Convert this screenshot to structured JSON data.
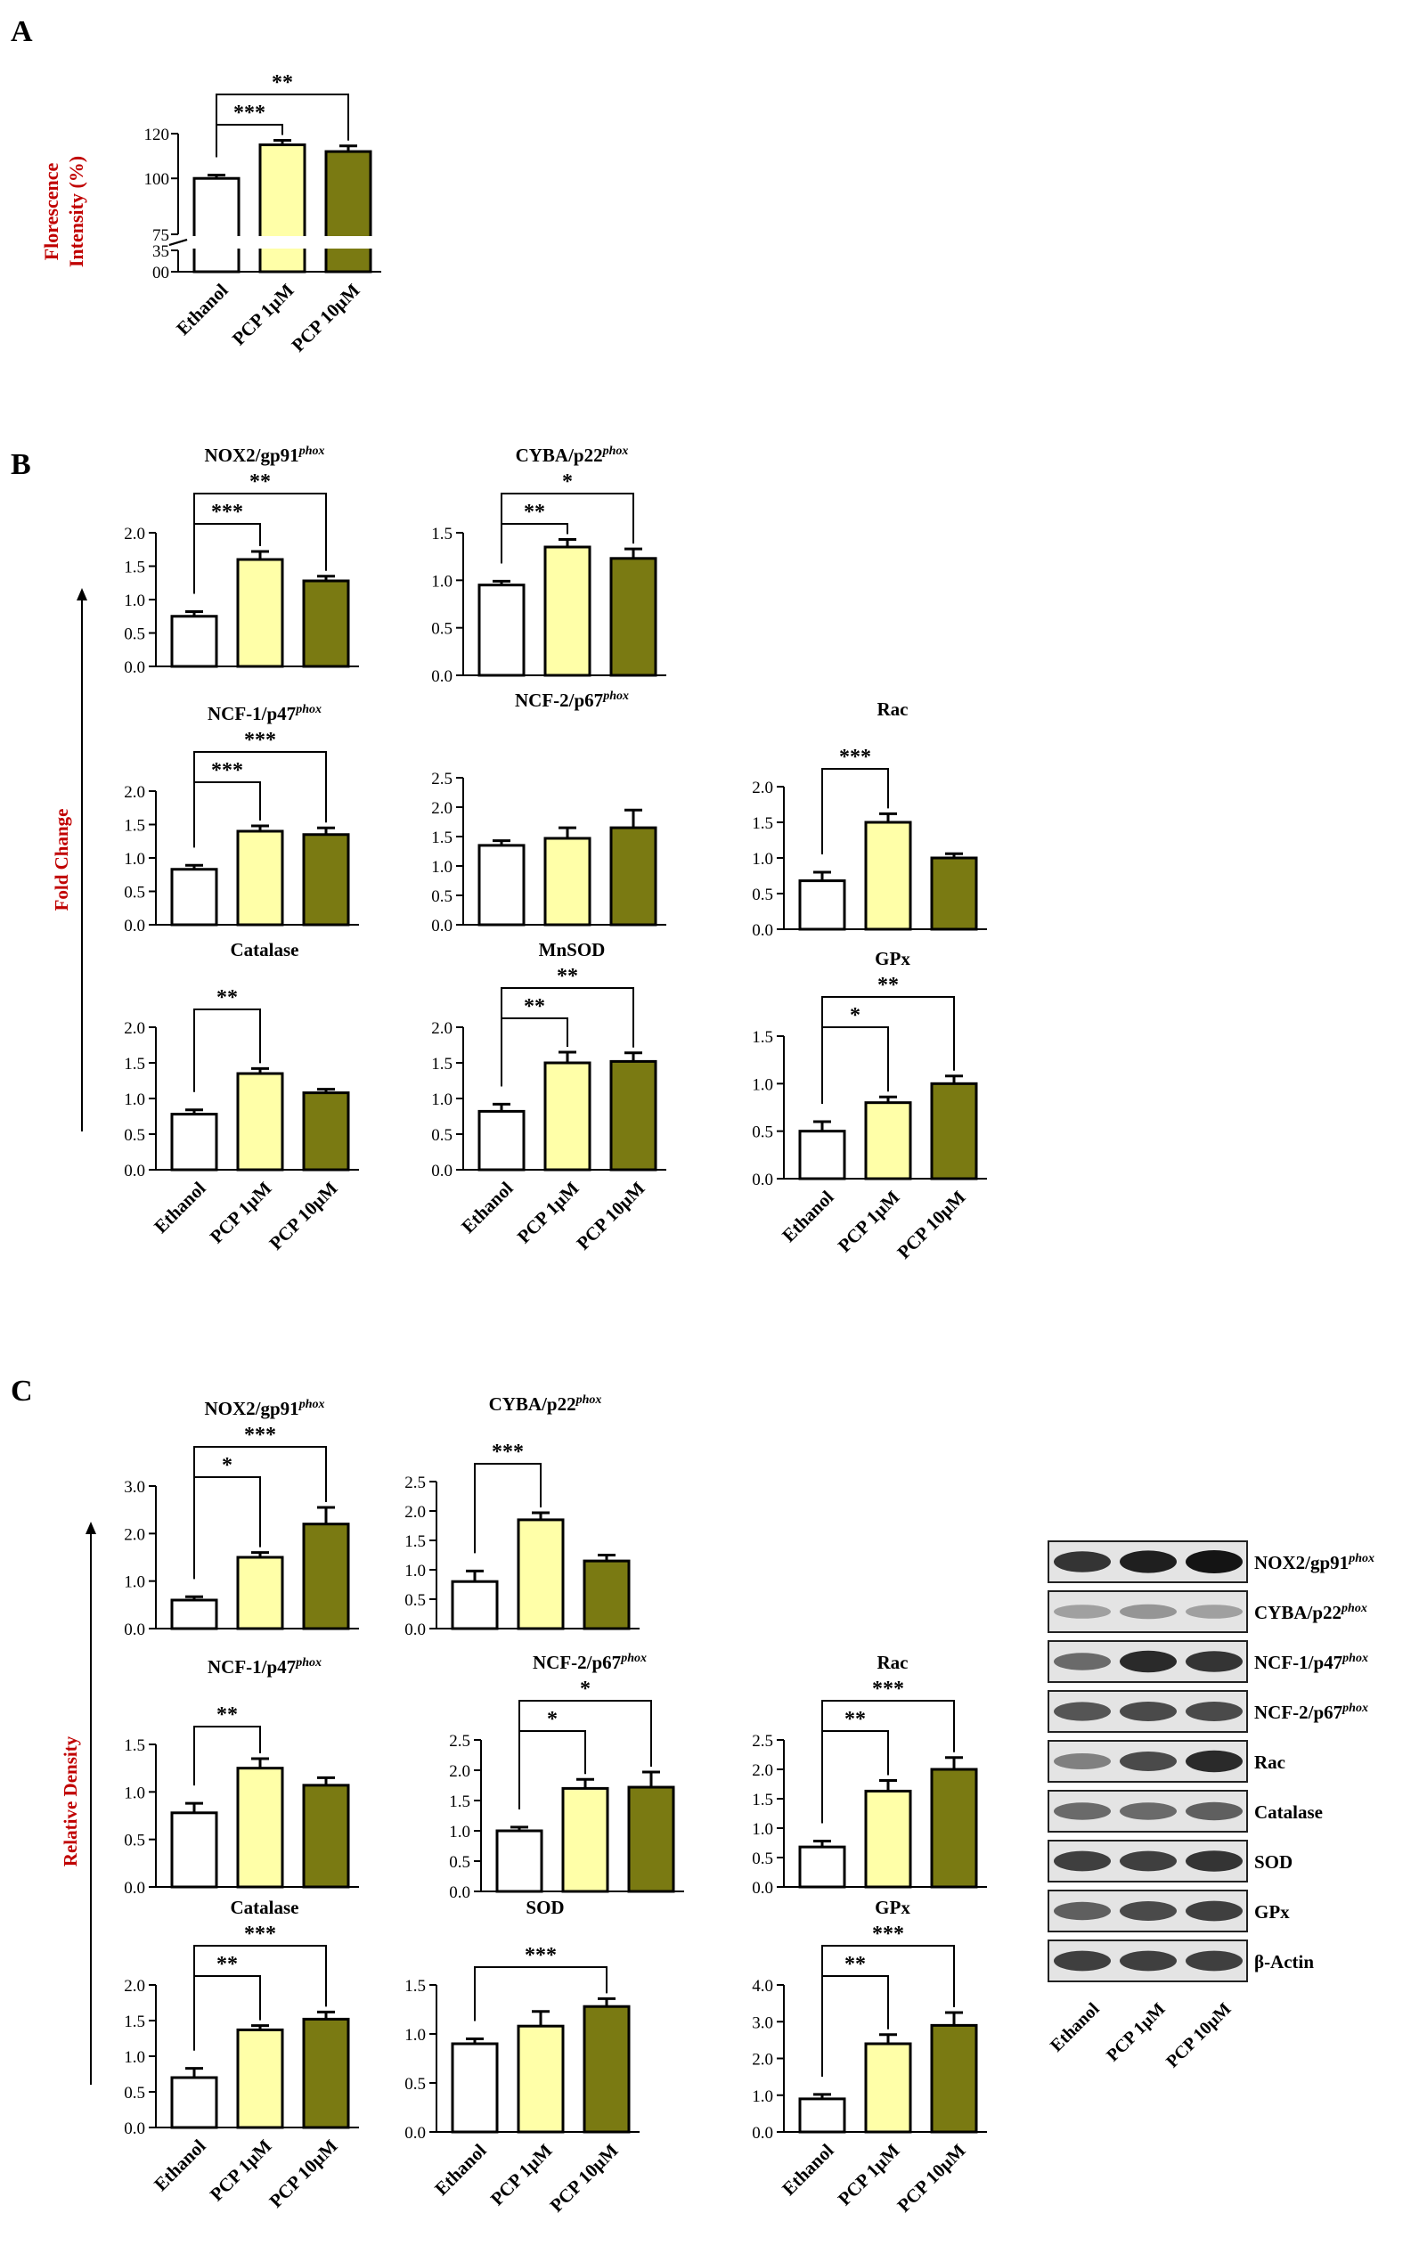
{
  "figure": {
    "panel_labels": [
      "A",
      "B",
      "C"
    ],
    "panel_b_ylabel": "Fold Change",
    "panel_c_ylabel": "Relative Density",
    "categories": [
      "Ethanol",
      "PCP 1µM",
      "PCP 10µM"
    ],
    "colors": {
      "Ethanol": "#ffffff",
      "PCP 1µM": "#ffffa8",
      "PCP 10µM": "#7a7a12"
    }
  },
  "chart_data": [
    {
      "id": "A",
      "type": "bar",
      "title": "",
      "ylabel": "Florescence Intensity (%)",
      "categories": [
        "Ethanol",
        "PCP 1µM",
        "PCP 10µM"
      ],
      "values": [
        100,
        115,
        112
      ],
      "errors": [
        1.5,
        2,
        2.5
      ],
      "ylim": [
        0,
        120
      ],
      "axis_break": [
        35,
        75
      ],
      "yticks": [
        "120",
        "100",
        "75",
        "35",
        "00"
      ],
      "significance": [
        {
          "from": "Ethanol",
          "to": "PCP 1µM",
          "label": "***"
        },
        {
          "from": "Ethanol",
          "to": "PCP 10µM",
          "label": "**"
        }
      ]
    },
    {
      "id": "B-NOX2",
      "type": "bar",
      "title": "NOX2/gp91",
      "title_sup": "phox",
      "categories": [
        "Ethanol",
        "PCP 1µM",
        "PCP 10µM"
      ],
      "values": [
        0.75,
        1.6,
        1.28
      ],
      "errors": [
        0.07,
        0.12,
        0.07
      ],
      "ylim": [
        0,
        2.0
      ],
      "yticks": [
        "0.0",
        "0.5",
        "1.0",
        "1.5",
        "2.0"
      ],
      "significance": [
        {
          "from": "Ethanol",
          "to": "PCP 1µM",
          "label": "***"
        },
        {
          "from": "Ethanol",
          "to": "PCP 10µM",
          "label": "**"
        }
      ]
    },
    {
      "id": "B-CYBA",
      "type": "bar",
      "title": "CYBA/p22",
      "title_sup": "phox",
      "categories": [
        "Ethanol",
        "PCP 1µM",
        "PCP 10µM"
      ],
      "values": [
        0.95,
        1.35,
        1.23
      ],
      "errors": [
        0.04,
        0.08,
        0.1
      ],
      "ylim": [
        0,
        1.5
      ],
      "yticks": [
        "0.0",
        "0.5",
        "1.0",
        "1.5"
      ],
      "significance": [
        {
          "from": "Ethanol",
          "to": "PCP 1µM",
          "label": "**"
        },
        {
          "from": "Ethanol",
          "to": "PCP 10µM",
          "label": "*"
        }
      ]
    },
    {
      "id": "B-NCF1",
      "type": "bar",
      "title": "NCF-1/p47",
      "title_sup": "phox",
      "categories": [
        "Ethanol",
        "PCP 1µM",
        "PCP 10µM"
      ],
      "values": [
        0.83,
        1.4,
        1.35
      ],
      "errors": [
        0.06,
        0.08,
        0.1
      ],
      "ylim": [
        0,
        2.0
      ],
      "yticks": [
        "0.0",
        "0.5",
        "1.0",
        "1.5",
        "2.0"
      ],
      "significance": [
        {
          "from": "Ethanol",
          "to": "PCP 1µM",
          "label": "***"
        },
        {
          "from": "Ethanol",
          "to": "PCP 10µM",
          "label": "***"
        }
      ]
    },
    {
      "id": "B-NCF2",
      "type": "bar",
      "title": "NCF-2/p67",
      "title_sup": "phox",
      "categories": [
        "Ethanol",
        "PCP 1µM",
        "PCP 10µM"
      ],
      "values": [
        1.35,
        1.47,
        1.65
      ],
      "errors": [
        0.08,
        0.18,
        0.3
      ],
      "ylim": [
        0,
        2.5
      ],
      "yticks": [
        "0.0",
        "0.5",
        "1.0",
        "1.5",
        "2.0",
        "2.5"
      ],
      "significance": []
    },
    {
      "id": "B-Rac",
      "type": "bar",
      "title": "Rac",
      "title_sup": "",
      "categories": [
        "Ethanol",
        "PCP 1µM",
        "PCP 10µM"
      ],
      "values": [
        0.68,
        1.5,
        1.0
      ],
      "errors": [
        0.12,
        0.12,
        0.06
      ],
      "ylim": [
        0,
        2.0
      ],
      "yticks": [
        "0.0",
        "0.5",
        "1.0",
        "1.5",
        "2.0"
      ],
      "significance": [
        {
          "from": "Ethanol",
          "to": "PCP 1µM",
          "label": "***"
        }
      ]
    },
    {
      "id": "B-Catalase",
      "type": "bar",
      "title": "Catalase",
      "title_sup": "",
      "categories": [
        "Ethanol",
        "PCP 1µM",
        "PCP 10µM"
      ],
      "values": [
        0.78,
        1.35,
        1.08
      ],
      "errors": [
        0.06,
        0.07,
        0.05
      ],
      "ylim": [
        0,
        2.0
      ],
      "yticks": [
        "0.0",
        "0.5",
        "1.0",
        "1.5",
        "2.0"
      ],
      "significance": [
        {
          "from": "Ethanol",
          "to": "PCP 1µM",
          "label": "**"
        }
      ]
    },
    {
      "id": "B-MnSOD",
      "type": "bar",
      "title": "MnSOD",
      "title_sup": "",
      "categories": [
        "Ethanol",
        "PCP 1µM",
        "PCP 10µM"
      ],
      "values": [
        0.82,
        1.5,
        1.52
      ],
      "errors": [
        0.1,
        0.15,
        0.12
      ],
      "ylim": [
        0,
        2.0
      ],
      "yticks": [
        "0.0",
        "0.5",
        "1.0",
        "1.5",
        "2.0"
      ],
      "significance": [
        {
          "from": "Ethanol",
          "to": "PCP 1µM",
          "label": "**"
        },
        {
          "from": "Ethanol",
          "to": "PCP 10µM",
          "label": "**"
        }
      ]
    },
    {
      "id": "B-GPx",
      "type": "bar",
      "title": "GPx",
      "title_sup": "",
      "categories": [
        "Ethanol",
        "PCP 1µM",
        "PCP 10µM"
      ],
      "values": [
        0.5,
        0.8,
        1.0
      ],
      "errors": [
        0.1,
        0.06,
        0.08
      ],
      "ylim": [
        0,
        1.5
      ],
      "yticks": [
        "0.0",
        "0.5",
        "1.0",
        "1.5"
      ],
      "significance": [
        {
          "from": "Ethanol",
          "to": "PCP 1µM",
          "label": "*"
        },
        {
          "from": "Ethanol",
          "to": "PCP 10µM",
          "label": "**"
        }
      ]
    },
    {
      "id": "C-NOX2",
      "type": "bar",
      "title": "NOX2/gp91",
      "title_sup": "phox",
      "categories": [
        "Ethanol",
        "PCP 1µM",
        "PCP 10µM"
      ],
      "values": [
        0.6,
        1.5,
        2.2
      ],
      "errors": [
        0.07,
        0.1,
        0.35
      ],
      "ylim": [
        0,
        3.0
      ],
      "yticks": [
        "0.0",
        "1.0",
        "2.0",
        "3.0"
      ],
      "significance": [
        {
          "from": "Ethanol",
          "to": "PCP 1µM",
          "label": "*"
        },
        {
          "from": "Ethanol",
          "to": "PCP 10µM",
          "label": "***"
        }
      ]
    },
    {
      "id": "C-CYBA",
      "type": "bar",
      "title": "CYBA/p22",
      "title_sup": "phox",
      "categories": [
        "Ethanol",
        "PCP 1µM",
        "PCP 10µM"
      ],
      "values": [
        0.8,
        1.85,
        1.15
      ],
      "errors": [
        0.18,
        0.12,
        0.1
      ],
      "ylim": [
        0,
        2.5
      ],
      "yticks": [
        "0.0",
        "0.5",
        "1.0",
        "1.5",
        "2.0",
        "2.5"
      ],
      "significance": [
        {
          "from": "Ethanol",
          "to": "PCP 1µM",
          "label": "***"
        }
      ]
    },
    {
      "id": "C-NCF1",
      "type": "bar",
      "title": "NCF-1/p47",
      "title_sup": "phox",
      "categories": [
        "Ethanol",
        "PCP 1µM",
        "PCP 10µM"
      ],
      "values": [
        0.78,
        1.25,
        1.07
      ],
      "errors": [
        0.1,
        0.1,
        0.08
      ],
      "ylim": [
        0,
        1.5
      ],
      "yticks": [
        "0.0",
        "0.5",
        "1.0",
        "1.5"
      ],
      "significance": [
        {
          "from": "Ethanol",
          "to": "PCP 1µM",
          "label": "**"
        }
      ]
    },
    {
      "id": "C-NCF2",
      "type": "bar",
      "title": "NCF-2/p67",
      "title_sup": "phox",
      "categories": [
        "Ethanol",
        "PCP 1µM",
        "PCP 10µM"
      ],
      "values": [
        1.0,
        1.7,
        1.72
      ],
      "errors": [
        0.06,
        0.15,
        0.25
      ],
      "ylim": [
        0,
        2.5
      ],
      "yticks": [
        "0.0",
        "0.5",
        "1.0",
        "1.5",
        "2.0",
        "2.5"
      ],
      "significance": [
        {
          "from": "Ethanol",
          "to": "PCP 1µM",
          "label": "*"
        },
        {
          "from": "Ethanol",
          "to": "PCP 10µM",
          "label": "*"
        }
      ]
    },
    {
      "id": "C-Rac",
      "type": "bar",
      "title": "Rac",
      "title_sup": "",
      "categories": [
        "Ethanol",
        "PCP 1µM",
        "PCP 10µM"
      ],
      "values": [
        0.68,
        1.63,
        2.0
      ],
      "errors": [
        0.1,
        0.18,
        0.2
      ],
      "ylim": [
        0,
        2.5
      ],
      "yticks": [
        "0.0",
        "0.5",
        "1.0",
        "1.5",
        "2.0",
        "2.5"
      ],
      "significance": [
        {
          "from": "Ethanol",
          "to": "PCP 1µM",
          "label": "**"
        },
        {
          "from": "Ethanol",
          "to": "PCP 10µM",
          "label": "***"
        }
      ]
    },
    {
      "id": "C-Catalase",
      "type": "bar",
      "title": "Catalase",
      "title_sup": "",
      "categories": [
        "Ethanol",
        "PCP 1µM",
        "PCP 10µM"
      ],
      "values": [
        0.7,
        1.37,
        1.52
      ],
      "errors": [
        0.13,
        0.06,
        0.1
      ],
      "ylim": [
        0,
        2.0
      ],
      "yticks": [
        "0.0",
        "0.5",
        "1.0",
        "1.5",
        "2.0"
      ],
      "significance": [
        {
          "from": "Ethanol",
          "to": "PCP 1µM",
          "label": "**"
        },
        {
          "from": "Ethanol",
          "to": "PCP 10µM",
          "label": "***"
        }
      ]
    },
    {
      "id": "C-SOD",
      "type": "bar",
      "title": "SOD",
      "title_sup": "",
      "categories": [
        "Ethanol",
        "PCP 1µM",
        "PCP 10µM"
      ],
      "values": [
        0.9,
        1.08,
        1.28
      ],
      "errors": [
        0.05,
        0.15,
        0.08
      ],
      "ylim": [
        0,
        1.5
      ],
      "yticks": [
        "0.0",
        "0.5",
        "1.0",
        "1.5"
      ],
      "significance": [
        {
          "from": "Ethanol",
          "to": "PCP 10µM",
          "label": "***"
        }
      ]
    },
    {
      "id": "C-GPx",
      "type": "bar",
      "title": "GPx",
      "title_sup": "",
      "categories": [
        "Ethanol",
        "PCP 1µM",
        "PCP 10µM"
      ],
      "values": [
        0.9,
        2.4,
        2.9
      ],
      "errors": [
        0.12,
        0.25,
        0.35
      ],
      "ylim": [
        0,
        4.0
      ],
      "yticks": [
        "0.0",
        "1.0",
        "2.0",
        "3.0",
        "4.0"
      ],
      "significance": [
        {
          "from": "Ethanol",
          "to": "PCP 1µM",
          "label": "**"
        },
        {
          "from": "Ethanol",
          "to": "PCP 10µM",
          "label": "***"
        }
      ]
    }
  ],
  "western_blot": {
    "rows": [
      {
        "label": "NOX2/gp91",
        "sup": "phox",
        "intensity": [
          0.85,
          0.95,
          1.0
        ]
      },
      {
        "label": "CYBA/p22",
        "sup": "phox",
        "intensity": [
          0.35,
          0.4,
          0.35
        ]
      },
      {
        "label": "NCF-1/p47",
        "sup": "phox",
        "intensity": [
          0.6,
          0.9,
          0.85
        ]
      },
      {
        "label": "NCF-2/p67",
        "sup": "phox",
        "intensity": [
          0.7,
          0.75,
          0.75
        ]
      },
      {
        "label": "Rac",
        "sup": "",
        "intensity": [
          0.5,
          0.75,
          0.9
        ]
      },
      {
        "label": "Catalase",
        "sup": "",
        "intensity": [
          0.6,
          0.6,
          0.65
        ]
      },
      {
        "label": "SOD",
        "sup": "",
        "intensity": [
          0.8,
          0.8,
          0.85
        ]
      },
      {
        "label": "GPx",
        "sup": "",
        "intensity": [
          0.65,
          0.75,
          0.8
        ]
      },
      {
        "label": "β-Actin",
        "sup": "",
        "intensity": [
          0.8,
          0.8,
          0.8
        ]
      }
    ],
    "lanes": [
      "Ethanol",
      "PCP 1µM",
      "PCP 10µM"
    ]
  }
}
